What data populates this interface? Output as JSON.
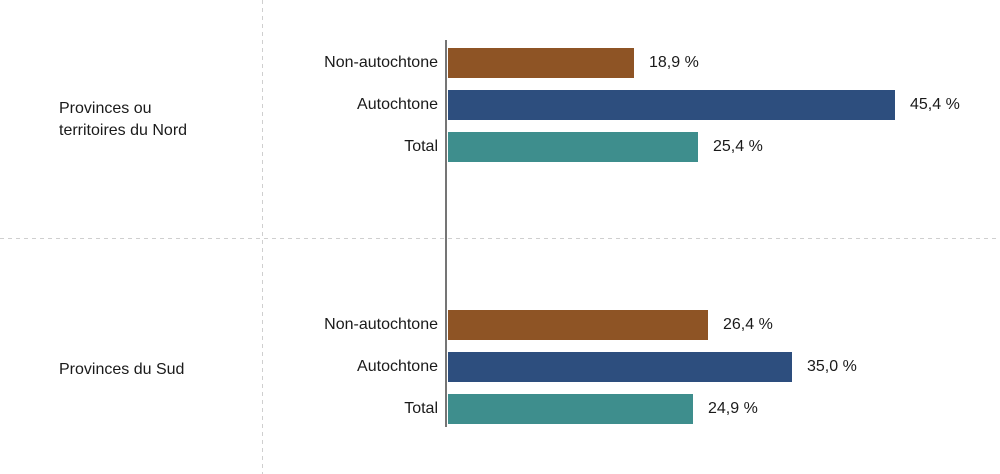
{
  "chart_data": {
    "type": "bar",
    "orientation": "horizontal",
    "title": "",
    "xlabel": "",
    "ylabel": "",
    "xlim": [
      0,
      50
    ],
    "grid": "dashed crosshair gridlines (one vertical, one horizontal)",
    "legend_position": "none",
    "value_format": "french decimal comma with space before %",
    "categories": [
      "Non-autochtone",
      "Autochtone",
      "Total"
    ],
    "colors": {
      "non_autochtone": "#8E5425",
      "autochtone": "#2D4E7E",
      "total": "#3E8E8D",
      "axis_line": "#757575",
      "gridline": "#CFCFCF",
      "text": "#1A1A1A"
    },
    "groups": [
      {
        "label": "Provinces ou territoires du Nord",
        "label_lines": [
          "Provinces ou",
          "territoires du Nord"
        ],
        "categories": [
          "Non-autochtone",
          "Autochtone",
          "Total"
        ],
        "values": [
          18.9,
          45.4,
          25.4
        ],
        "display_values": [
          "18,9 %",
          "45,4 %",
          "25,4 %"
        ]
      },
      {
        "label": "Provinces du Sud",
        "label_lines": [
          "Provinces du Sud"
        ],
        "categories": [
          "Non-autochtone",
          "Autochtone",
          "Total"
        ],
        "values": [
          26.4,
          35.0,
          24.9
        ],
        "display_values": [
          "26,4 %",
          "35,0 %",
          "24,9 %"
        ]
      }
    ]
  }
}
